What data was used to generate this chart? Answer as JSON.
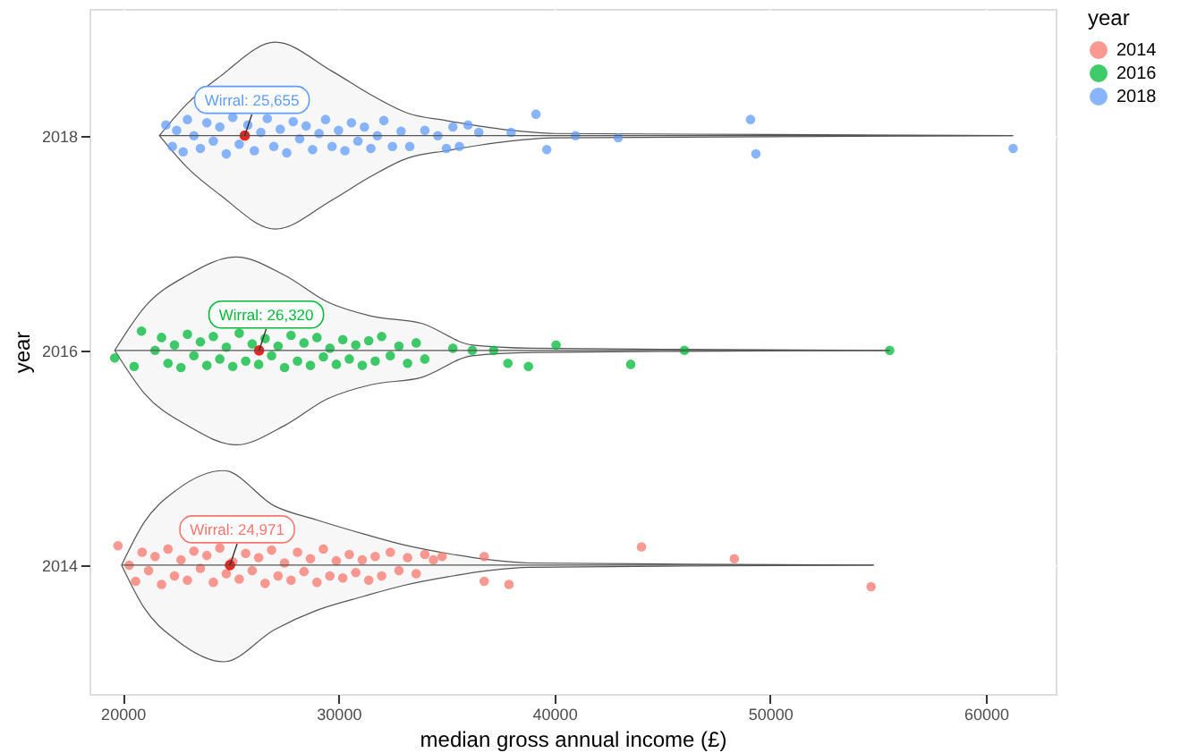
{
  "chart_data": {
    "type": "scatter",
    "xlabel": "median gross annual income (£)",
    "ylabel": "year",
    "legend_title": "year",
    "legend": "right",
    "grid": true,
    "marker": "circle",
    "xlim": [
      18460,
      63230
    ],
    "xticks": [
      20000,
      30000,
      40000,
      50000,
      60000
    ],
    "ylim": [
      2012.8,
      2019.18
    ],
    "yticks": [
      2014,
      2016,
      2018
    ],
    "series": [
      {
        "type": "line",
        "color": "#555555",
        "x": [
          19950,
          21000,
          22500,
          24680,
          27040,
          29000,
          31170,
          33000,
          35020,
          37000,
          38840,
          45000,
          54800
        ],
        "marker": "none",
        "values": [
          2014,
          2014,
          2014,
          2014,
          2014,
          2014,
          2014,
          2014,
          2014,
          2014,
          2014,
          2014,
          2014
        ],
        "lower": [
          2014,
          2013.6,
          2013.3,
          2013.1,
          2013.4,
          2013.58,
          2013.71,
          2013.81,
          2013.89,
          2013.95,
          2013.98,
          2013.99,
          2014
        ],
        "upper": [
          2014,
          2014.4,
          2014.7,
          2014.88,
          2014.55,
          2014.42,
          2014.29,
          2014.19,
          2014.11,
          2014.05,
          2014.02,
          2014.01,
          2014
        ]
      },
      {
        "type": "line",
        "color": "#555555",
        "x": [
          19630,
          21000,
          23000,
          25260,
          27500,
          29500,
          31500,
          33870,
          36200,
          39000,
          45000,
          55540
        ],
        "marker": "none",
        "values": [
          2016,
          2016,
          2016,
          2016,
          2016,
          2016,
          2016,
          2016,
          2016,
          2016,
          2016,
          2016
        ],
        "lower": [
          2016,
          2015.6,
          2015.3,
          2015.12,
          2015.3,
          2015.55,
          2015.68,
          2015.75,
          2015.95,
          2015.98,
          2015.99,
          2016
        ],
        "upper": [
          2016,
          2016.4,
          2016.7,
          2016.87,
          2016.7,
          2016.45,
          2016.32,
          2016.25,
          2016.05,
          2016.02,
          2016.01,
          2016
        ]
      },
      {
        "type": "line",
        "color": "#555555",
        "x": [
          21700,
          23000,
          24500,
          27070,
          29700,
          31500,
          33200,
          35000,
          36500,
          38000,
          40000,
          50000,
          61260
        ],
        "marker": "none",
        "values": [
          2018,
          2018,
          2018,
          2018,
          2018,
          2018,
          2018,
          2018,
          2018,
          2018,
          2018,
          2018,
          2018
        ],
        "lower": [
          2018,
          2017.7,
          2017.45,
          2017.13,
          2017.4,
          2017.62,
          2017.79,
          2017.86,
          2017.91,
          2017.95,
          2017.98,
          2017.99,
          2018
        ],
        "upper": [
          2018,
          2018.3,
          2018.55,
          2018.87,
          2018.6,
          2018.38,
          2018.21,
          2018.14,
          2018.09,
          2018.05,
          2018.02,
          2018.01,
          2018
        ]
      },
      {
        "name": "2014",
        "color": "#f8766d",
        "x": [
          19780,
          20300,
          20600,
          20900,
          21200,
          21500,
          21800,
          22100,
          22400,
          22700,
          23000,
          23300,
          23600,
          23900,
          24200,
          24500,
          24800,
          25100,
          25400,
          25700,
          26000,
          26300,
          26600,
          26900,
          27200,
          27500,
          27800,
          28100,
          28400,
          28700,
          29000,
          29300,
          29600,
          29900,
          30200,
          30500,
          30800,
          31100,
          31400,
          31700,
          32000,
          32400,
          32800,
          33200,
          33600,
          34000,
          34400,
          34800,
          36750,
          36750,
          37900,
          44040,
          48340,
          54680
        ],
        "values": [
          2014.18,
          2014.0,
          2013.85,
          2014.12,
          2013.95,
          2014.08,
          2013.82,
          2014.15,
          2013.9,
          2014.05,
          2013.86,
          2014.13,
          2013.97,
          2014.09,
          2013.84,
          2014.16,
          2013.92,
          2014.03,
          2013.87,
          2014.11,
          2013.95,
          2014.07,
          2013.83,
          2014.14,
          2013.9,
          2014.02,
          2013.86,
          2014.12,
          2013.94,
          2014.06,
          2013.84,
          2014.15,
          2013.9,
          2014.04,
          2013.88,
          2014.1,
          2013.93,
          2014.05,
          2013.86,
          2014.08,
          2013.9,
          2014.12,
          2013.95,
          2014.07,
          2013.92,
          2014.1,
          2014.05,
          2014.08,
          2014.08,
          2013.85,
          2013.82,
          2014.17,
          2014.06,
          2013.8
        ]
      },
      {
        "name": "2016",
        "color": "#00ba38",
        "x": [
          19630,
          20530,
          20870,
          21500,
          21800,
          22100,
          22400,
          22700,
          23000,
          23300,
          23600,
          23900,
          24200,
          24500,
          24800,
          25100,
          25400,
          25700,
          26000,
          26300,
          26600,
          26900,
          27200,
          27500,
          27800,
          28100,
          28400,
          28700,
          29000,
          29300,
          29600,
          29900,
          30200,
          30500,
          30800,
          31100,
          31400,
          31700,
          32000,
          32400,
          32800,
          33200,
          33600,
          34000,
          35300,
          36200,
          37190,
          37850,
          38800,
          40080,
          43540,
          46030,
          55540
        ],
        "values": [
          2015.93,
          2015.85,
          2016.18,
          2016.0,
          2016.12,
          2015.88,
          2016.05,
          2015.84,
          2016.15,
          2015.95,
          2016.08,
          2015.86,
          2016.13,
          2015.92,
          2016.03,
          2015.85,
          2016.16,
          2015.9,
          2016.06,
          2015.87,
          2016.11,
          2015.95,
          2016.04,
          2015.84,
          2016.14,
          2015.9,
          2016.07,
          2015.86,
          2016.12,
          2015.94,
          2016.02,
          2015.87,
          2016.1,
          2015.92,
          2016.05,
          2015.86,
          2016.09,
          2015.9,
          2016.13,
          2015.95,
          2016.04,
          2015.88,
          2016.07,
          2015.92,
          2016.02,
          2016.0,
          2016.0,
          2015.88,
          2015.85,
          2016.05,
          2015.87,
          2016.0,
          2016.0
        ]
      },
      {
        "name": "2018",
        "color": "#619cff",
        "x": [
          22000,
          22300,
          22500,
          22800,
          23000,
          23300,
          23600,
          23900,
          24200,
          24500,
          24800,
          25100,
          25400,
          25800,
          26100,
          26400,
          26700,
          27000,
          27300,
          27600,
          27900,
          28200,
          28500,
          28800,
          29100,
          29400,
          29700,
          30000,
          30300,
          30600,
          30900,
          31200,
          31500,
          31800,
          32100,
          32500,
          32900,
          33300,
          34000,
          34600,
          35000,
          35300,
          35600,
          36000,
          36500,
          38000,
          39150,
          39650,
          40980,
          42960,
          49090,
          49340,
          61260
        ],
        "values": [
          2018.1,
          2017.9,
          2018.05,
          2017.85,
          2018.15,
          2018.0,
          2017.88,
          2018.12,
          2017.95,
          2018.08,
          2017.83,
          2018.17,
          2017.92,
          2018.1,
          2017.86,
          2018.03,
          2018.16,
          2017.9,
          2018.06,
          2017.84,
          2018.13,
          2017.97,
          2018.09,
          2017.87,
          2018.02,
          2018.15,
          2017.9,
          2018.05,
          2017.86,
          2018.12,
          2017.95,
          2018.08,
          2017.88,
          2018.0,
          2018.14,
          2017.9,
          2018.04,
          2017.9,
          2018.05,
          2018.0,
          2017.88,
          2018.08,
          2017.9,
          2018.1,
          2018.03,
          2018.03,
          2018.2,
          2017.87,
          2018.0,
          2017.98,
          2018.15,
          2017.83,
          2017.88
        ]
      },
      {
        "color": "#e8251f",
        "x": [
          24971,
          26320,
          25655
        ],
        "values": [
          2014,
          2016,
          2018
        ]
      }
    ],
    "annotations": [
      {
        "text": "Wirral: 24,971",
        "x": 24971,
        "y": 2014
      },
      {
        "text": "Wirral: 26,320",
        "x": 26320,
        "y": 2016
      },
      {
        "text": "Wirral: 25,655",
        "x": 25655,
        "y": 2018
      }
    ]
  }
}
